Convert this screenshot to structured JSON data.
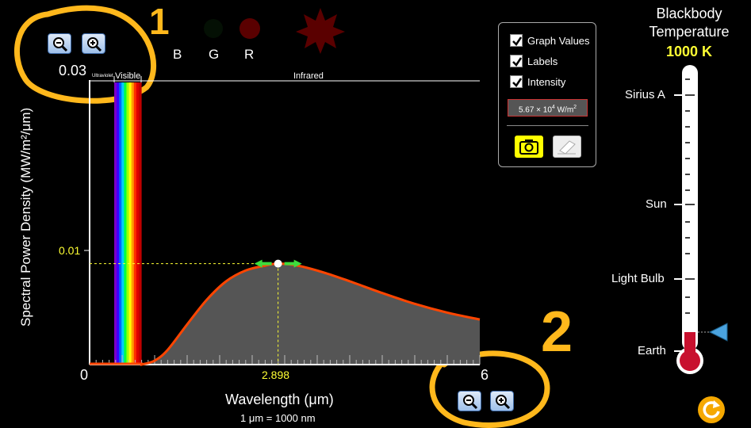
{
  "graph": {
    "y_max_label": "0.03",
    "y_mid_label": "0.01",
    "x_min_label": "0",
    "x_peak_label": "2.898",
    "x_max_label": "6",
    "y_axis_title": "Spectral Power Density (MW/m²/μm)",
    "x_axis_title": "Wavelength (μm)",
    "unit_note": "1 μm  =  1000 nm",
    "band_ultraviolet": "Ultraviolet",
    "band_visible": "Visible",
    "band_infrared": "Infrared"
  },
  "chart_data": {
    "type": "line",
    "xlabel": "Wavelength (μm)",
    "ylabel": "Spectral Power Density (MW/m²/μm)",
    "xlim": [
      0,
      6
    ],
    "ylim": [
      0,
      0.03
    ],
    "series": [
      {
        "x": [
          0.8,
          1.0,
          1.2,
          1.5,
          1.8,
          2.1,
          2.4,
          2.7,
          2.898,
          3.2,
          3.6,
          4.0,
          4.5,
          5.0,
          5.5,
          6.0
        ],
        "y": [
          0.0,
          0.0004,
          0.0015,
          0.0041,
          0.0066,
          0.0085,
          0.0096,
          0.0101,
          0.0103,
          0.0101,
          0.0094,
          0.0085,
          0.0073,
          0.0062,
          0.0053,
          0.0046
        ]
      }
    ],
    "peak": {
      "x": 2.898,
      "y": 0.0103
    }
  },
  "color_indicators": {
    "b_label": "B",
    "g_label": "G",
    "r_label": "R"
  },
  "options": {
    "graph_values": "Graph Values",
    "labels": "Labels",
    "intensity": "Intensity",
    "intensity_value": "5.67 × 10",
    "intensity_exp": "4",
    "intensity_unit": " W/m",
    "intensity_unit_exp": "2"
  },
  "thermometer": {
    "title_line1": "Blackbody",
    "title_line2": "Temperature",
    "value": "1000 K",
    "marks": [
      "Sirius A",
      "Sun",
      "Light Bulb",
      "Earth"
    ],
    "fill_fraction": 0.05
  },
  "annotations": {
    "one": "1",
    "two": "2"
  },
  "colors": {
    "curve": "#ff4500",
    "accent": "#ffff33",
    "fill": "#555555"
  }
}
